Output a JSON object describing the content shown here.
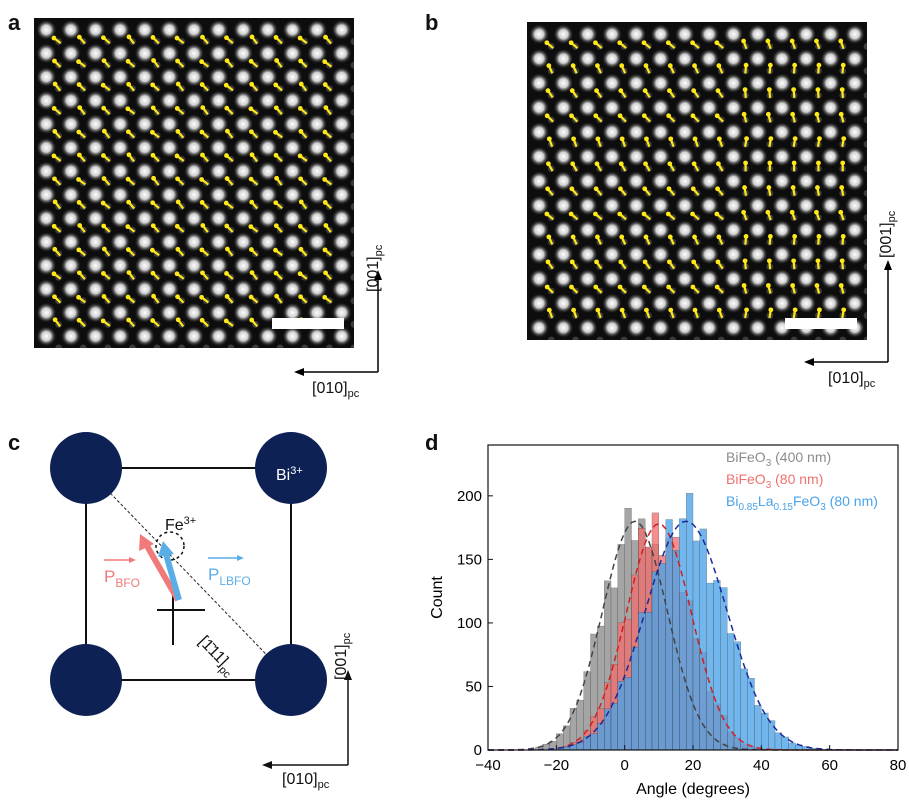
{
  "panels": {
    "a": {
      "label": "a",
      "axis_vertical": "[001]",
      "axis_vertical_sub": "pc",
      "axis_horizontal": "[010]",
      "axis_horizontal_sub": "pc"
    },
    "b": {
      "label": "b",
      "axis_vertical": "[001]",
      "axis_vertical_sub": "pc",
      "axis_horizontal": "[010]",
      "axis_horizontal_sub": "pc"
    },
    "c": {
      "label": "c",
      "fe_label": "Fe",
      "fe_sup": "3+",
      "bi_label": "Bi",
      "bi_sup": "3+",
      "p_bfo": "P",
      "p_bfo_sub": "BFO",
      "p_lbfo": "P",
      "p_lbfo_sub": "LBFO",
      "diag_label": "[1̄11]",
      "diag_sub": "pc",
      "axis_vertical": "[001]",
      "axis_vertical_sub": "pc",
      "axis_horizontal": "[010]",
      "axis_horizontal_sub": "pc",
      "colors": {
        "atom": "#0d2155",
        "p_bfo": "#f07a7a",
        "p_lbfo": "#5aaee8"
      }
    },
    "d": {
      "label": "d"
    }
  },
  "chart_data": {
    "type": "bar",
    "xlabel": "Angle (degrees)",
    "ylabel": "Count",
    "xlim": [
      -40,
      80
    ],
    "ylim": [
      0,
      240
    ],
    "xticks": [
      -40,
      -20,
      0,
      20,
      40,
      60,
      80
    ],
    "yticks": [
      0,
      50,
      100,
      150,
      200
    ],
    "bin_width": 2,
    "series": [
      {
        "name": "BiFeO3 (400 nm)",
        "legend_main": "BiFeO",
        "legend_sub": "3",
        "legend_rest": " (400 nm)",
        "color": "#8c8c8c",
        "fit_color": "#444444",
        "mean": 3,
        "sd": 9.5,
        "peak": 180
      },
      {
        "name": "BiFeO3 (80 nm)",
        "legend_main": "BiFeO",
        "legend_sub": "3",
        "legend_rest": " (80 nm)",
        "color": "#f07070",
        "fit_color": "#d02020",
        "mean": 10,
        "sd": 9.5,
        "peak": 178
      },
      {
        "name": "Bi0.85La0.15FeO3 (80 nm)",
        "legend_main": "Bi",
        "legend_sub": "0.85",
        "legend_mid": "La",
        "legend_sub2": "0.15",
        "legend_mid2": "FeO",
        "legend_sub3": "3",
        "legend_rest": " (80 nm)",
        "color": "#4aa3e8",
        "fit_color": "#1a2a9a",
        "mean": 18,
        "sd": 12,
        "peak": 180
      }
    ]
  }
}
